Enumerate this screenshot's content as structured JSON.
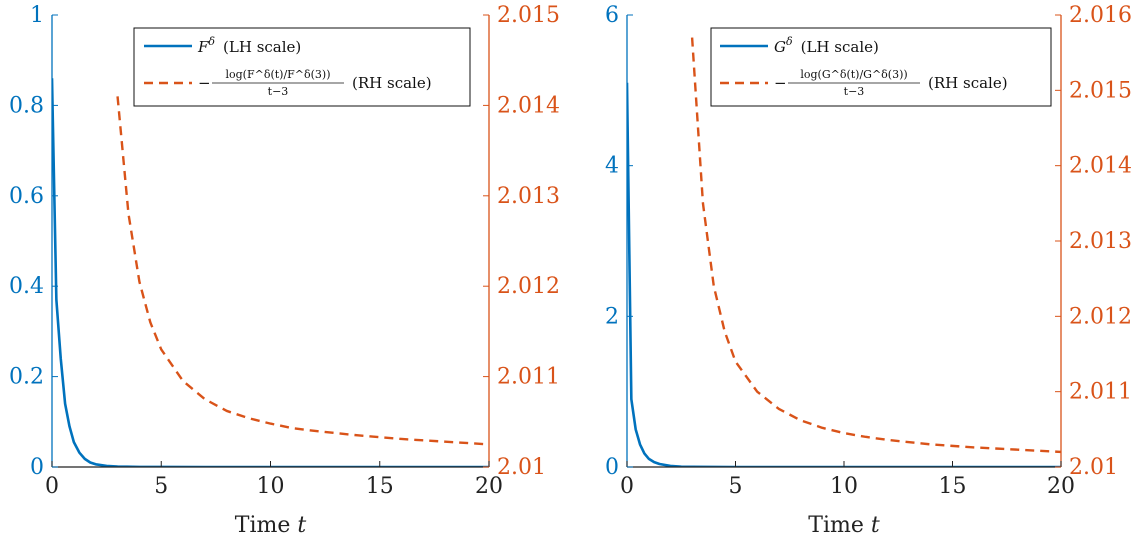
{
  "colors": {
    "left": "#0072BD",
    "right": "#D95319",
    "axis": "#222222"
  },
  "chart_data": [
    {
      "type": "line",
      "xlabel": "Time t",
      "xlim": [
        0,
        20
      ],
      "xticks": [
        0,
        5,
        10,
        15,
        20
      ],
      "xtick_labels": [
        "0",
        "5",
        "10",
        "15",
        "20"
      ],
      "ylim_left": [
        0,
        1
      ],
      "yticks_left": [
        0,
        0.2,
        0.4,
        0.6,
        0.8,
        1
      ],
      "ytick_labels_left": [
        "0",
        "0.2",
        "0.4",
        "0.6",
        "0.8",
        "1"
      ],
      "ylim_right": [
        2.01,
        2.015
      ],
      "yticks_right": [
        2.01,
        2.011,
        2.012,
        2.013,
        2.014,
        2.015
      ],
      "ytick_labels_right": [
        "2.01",
        "2.011",
        "2.012",
        "2.013",
        "2.014",
        "2.015"
      ],
      "legend_position": "top-right",
      "series": [
        {
          "name": "F^δ (LH scale)",
          "axis": "left",
          "style": "solid",
          "color": "#0072BD",
          "x": [
            0,
            0.2,
            0.4,
            0.6,
            0.8,
            1,
            1.25,
            1.5,
            1.75,
            2,
            2.5,
            3,
            4,
            5,
            7,
            10,
            15,
            20
          ],
          "y": [
            0.86,
            0.37,
            0.24,
            0.14,
            0.09,
            0.055,
            0.032,
            0.018,
            0.01,
            0.006,
            0.0025,
            0.001,
            0.0002,
            5e-05,
            0,
            0,
            0,
            0
          ]
        },
        {
          "name": "−log(F^δ(t)/F^δ(3))/(t−3) (RH scale)",
          "axis": "right",
          "style": "dashed",
          "color": "#D95319",
          "x": [
            3,
            3.5,
            4,
            4.5,
            5,
            6,
            7,
            8,
            9,
            10,
            11,
            12,
            14,
            16,
            18,
            20
          ],
          "y": [
            2.0141,
            2.0128,
            2.01205,
            2.0116,
            2.0113,
            2.01095,
            2.01075,
            2.01062,
            2.01054,
            2.01048,
            2.01043,
            2.0104,
            2.01035,
            2.01031,
            2.01028,
            2.01025
          ]
        }
      ],
      "legend": {
        "entry1_main": "F",
        "entry1_sup": "δ",
        "entry1_suffix": "(LH scale)",
        "entry2_num": "log(F^δ(t)/F^δ(3))",
        "entry2_den": "t−3",
        "entry2_suffix": "(RH scale)"
      }
    },
    {
      "type": "line",
      "xlabel": "Time t",
      "xlim": [
        0,
        20
      ],
      "xticks": [
        0,
        5,
        10,
        15,
        20
      ],
      "xtick_labels": [
        "0",
        "5",
        "10",
        "15",
        "20"
      ],
      "ylim_left": [
        0,
        6
      ],
      "yticks_left": [
        0,
        2,
        4,
        6
      ],
      "ytick_labels_left": [
        "0",
        "2",
        "4",
        "6"
      ],
      "ylim_right": [
        2.01,
        2.016
      ],
      "yticks_right": [
        2.01,
        2.011,
        2.012,
        2.013,
        2.014,
        2.015,
        2.016
      ],
      "ytick_labels_right": [
        "2.01",
        "2.011",
        "2.012",
        "2.013",
        "2.014",
        "2.015",
        "2.016"
      ],
      "legend_position": "top-right",
      "series": [
        {
          "name": "G^δ (LH scale)",
          "axis": "left",
          "style": "solid",
          "color": "#0072BD",
          "x": [
            0,
            0.2,
            0.4,
            0.6,
            0.8,
            1,
            1.25,
            1.5,
            2,
            2.5,
            3,
            4,
            5,
            7,
            10,
            15,
            20
          ],
          "y": [
            5.1,
            0.9,
            0.5,
            0.3,
            0.18,
            0.11,
            0.065,
            0.04,
            0.014,
            0.005,
            0.002,
            0.0003,
            5e-05,
            0,
            0,
            0,
            0
          ]
        },
        {
          "name": "−log(G^δ(t)/G^δ(3))/(t−3) (RH scale)",
          "axis": "right",
          "style": "dashed",
          "color": "#D95319",
          "x": [
            3,
            3.5,
            4,
            4.5,
            5,
            6,
            7,
            8,
            9,
            10,
            11,
            12,
            14,
            16,
            18,
            20
          ],
          "y": [
            2.0157,
            2.0135,
            2.0124,
            2.0118,
            2.0114,
            2.011,
            2.01077,
            2.01062,
            2.01052,
            2.01045,
            2.0104,
            2.01036,
            2.0103,
            2.01026,
            2.01023,
            2.0102
          ]
        }
      ],
      "legend": {
        "entry1_main": "G",
        "entry1_sup": "δ",
        "entry1_suffix": "(LH scale)",
        "entry2_num": "log(G^δ(t)/G^δ(3))",
        "entry2_den": "t−3",
        "entry2_suffix": "(RH scale)"
      }
    }
  ]
}
